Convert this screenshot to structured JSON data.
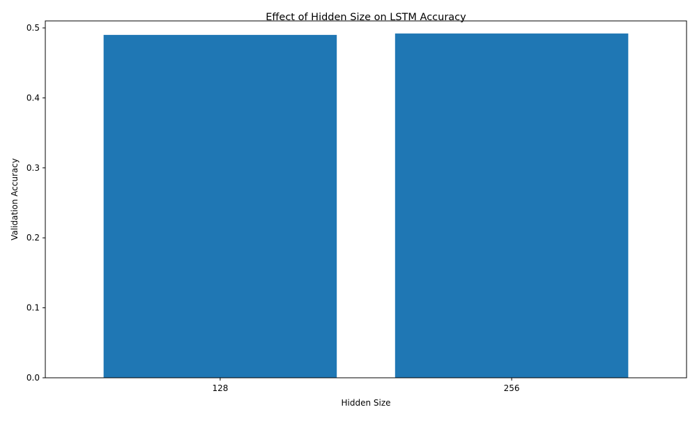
{
  "chart_data": {
    "type": "bar",
    "title": "Effect of Hidden Size on LSTM Accuracy",
    "xlabel": "Hidden Size",
    "ylabel": "Validation Accuracy",
    "categories": [
      "128",
      "256"
    ],
    "values": [
      0.49,
      0.492
    ],
    "ylim": [
      0,
      0.51
    ],
    "yticks": [
      0.0,
      0.1,
      0.2,
      0.3,
      0.4,
      0.5
    ],
    "ytick_labels": [
      "0.0",
      "0.1",
      "0.2",
      "0.3",
      "0.4",
      "0.5"
    ],
    "grid": false,
    "legend": "none",
    "bar_color": "#1f77b4"
  }
}
